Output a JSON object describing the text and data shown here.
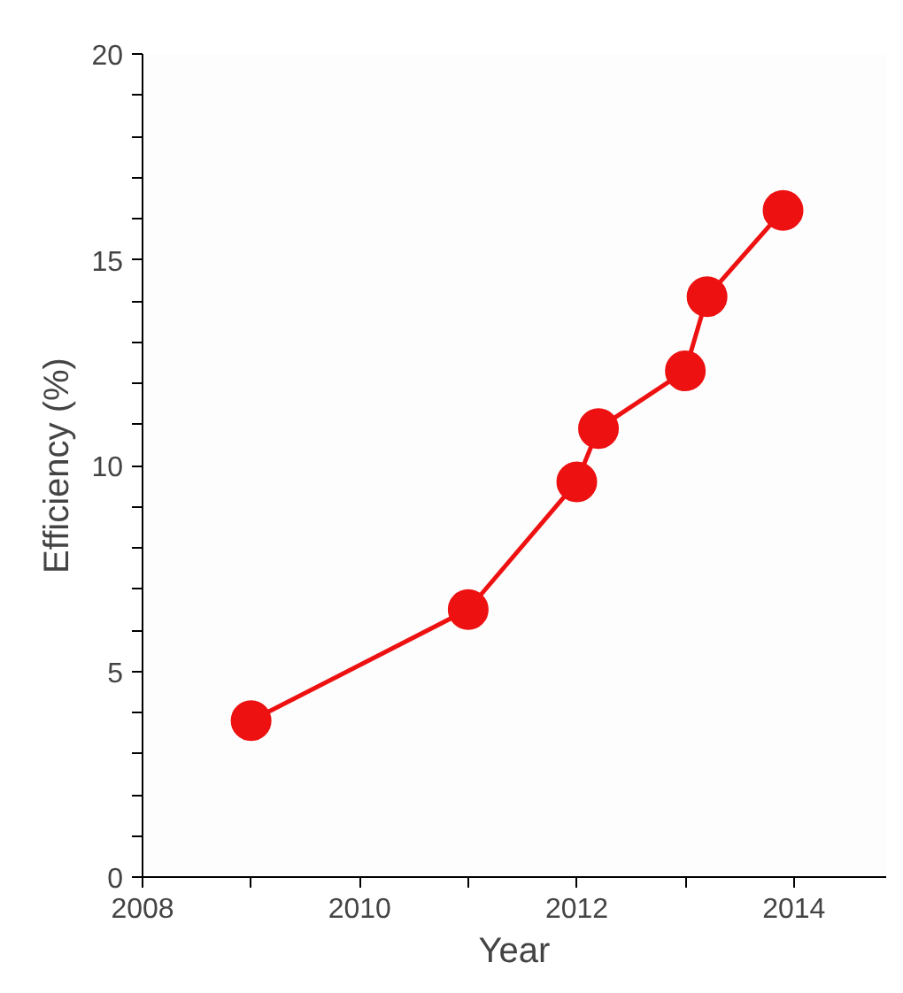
{
  "chart_data": {
    "type": "line",
    "xlabel": "Year",
    "ylabel": "Efficiency (%)",
    "x": [
      2009.0,
      2011.0,
      2012.0,
      2012.2,
      2013.0,
      2013.2,
      2013.9
    ],
    "series": [
      {
        "color": "#ee1111",
        "values": [
          3.8,
          6.5,
          9.6,
          10.9,
          12.3,
          14.1,
          16.2
        ]
      }
    ],
    "xlim": [
      2008,
      2014.85
    ],
    "ylim": [
      0,
      20
    ],
    "xticks": [
      2008,
      {
        "value": 2009,
        "label": null
      },
      2010,
      {
        "value": 2011,
        "label": null
      },
      2012,
      {
        "value": 2013,
        "label": null
      },
      2014
    ],
    "yticks": [
      0,
      {
        "value": 1,
        "label": null
      },
      {
        "value": 2,
        "label": null
      },
      {
        "value": 3,
        "label": null
      },
      {
        "value": 4,
        "label": null
      },
      5,
      {
        "value": 6,
        "label": null
      },
      {
        "value": 7,
        "label": null
      },
      {
        "value": 8,
        "label": null
      },
      {
        "value": 9,
        "label": null
      },
      10,
      {
        "value": 11,
        "label": null
      },
      {
        "value": 12,
        "label": null
      },
      {
        "value": 13,
        "label": null
      },
      {
        "value": 14,
        "label": null
      },
      15,
      {
        "value": 16,
        "label": null
      },
      {
        "value": 17,
        "label": null
      },
      {
        "value": 18,
        "label": null
      },
      {
        "value": 19,
        "label": null
      },
      20
    ],
    "grid": false,
    "marker": "circle",
    "line_style": "solid"
  }
}
